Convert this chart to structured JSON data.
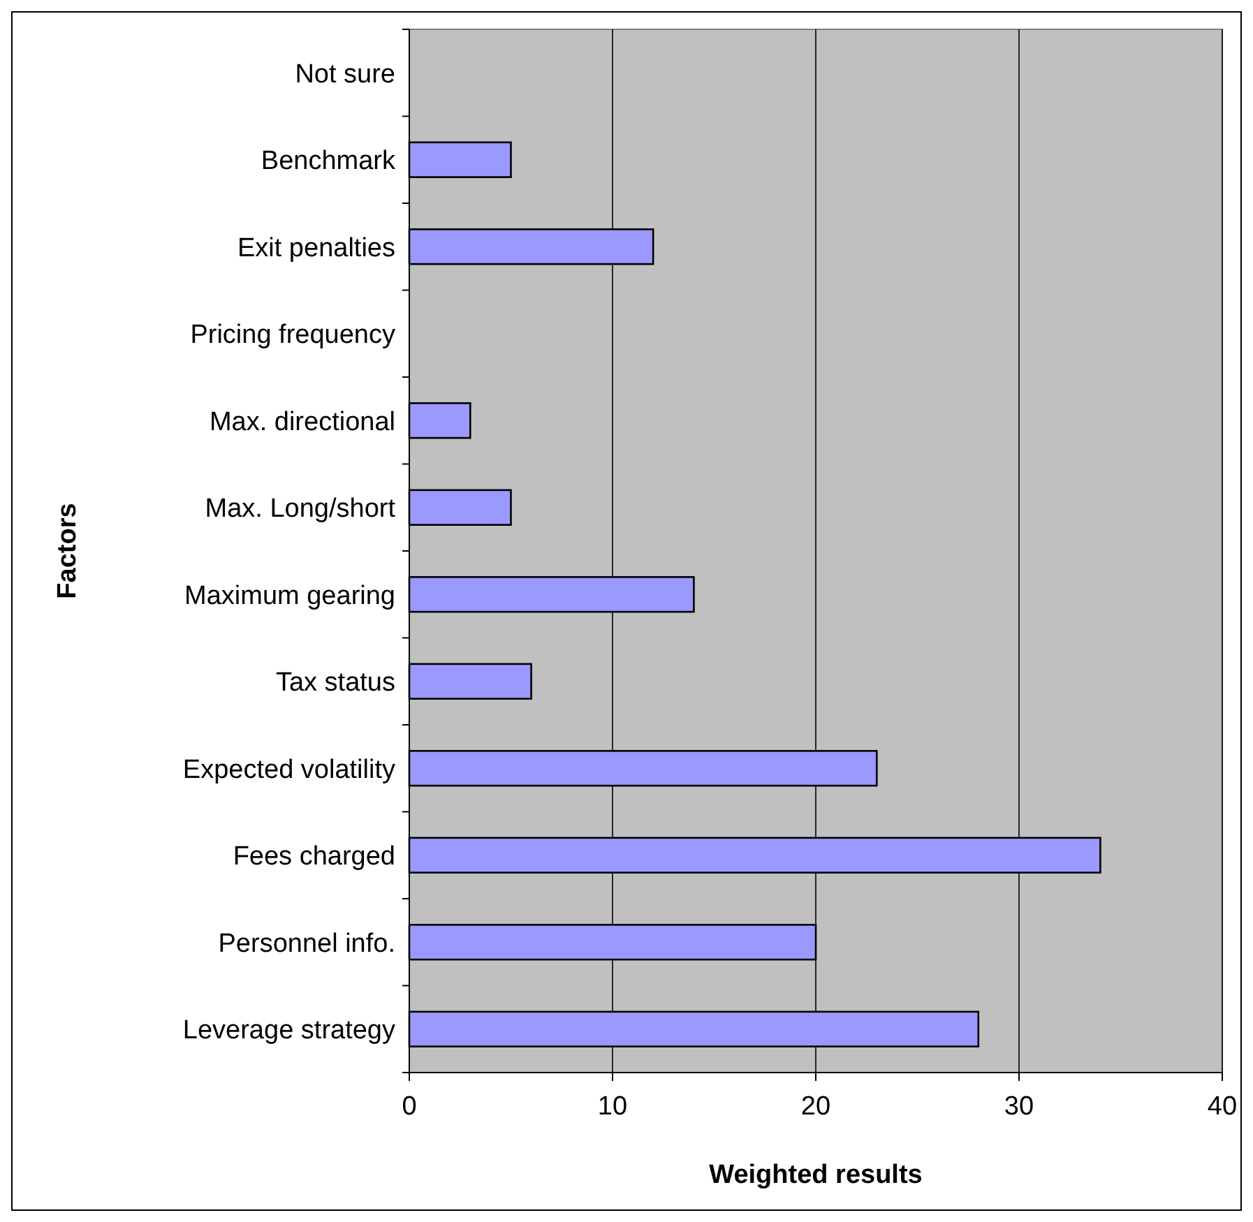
{
  "chart_data": {
    "type": "bar",
    "orientation": "horizontal",
    "xlabel": "Weighted results",
    "ylabel": "Factors",
    "categories": [
      "Not sure",
      "Benchmark",
      "Exit penalties",
      "Pricing frequency",
      "Max. directional",
      "Max. Long/short",
      "Maximum gearing",
      "Tax status",
      "Expected volatility",
      "Fees charged",
      "Personnel info.",
      "Leverage strategy"
    ],
    "values": [
      0,
      5,
      12,
      0,
      3,
      5,
      14,
      6,
      23,
      34,
      20,
      28
    ],
    "color": "#9999ff",
    "xlim": [
      0,
      40
    ],
    "xticks": [
      0,
      10,
      20,
      30,
      40
    ],
    "grid": "x"
  }
}
